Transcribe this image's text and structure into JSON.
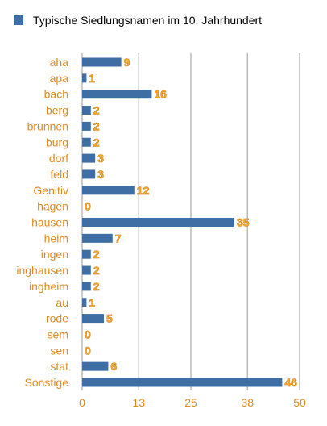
{
  "chart_data": {
    "type": "bar",
    "orientation": "horizontal",
    "categories": [
      "aha",
      "apa",
      "bach",
      "berg",
      "brunnen",
      "burg",
      "dorf",
      "feld",
      "Genitiv",
      "hagen",
      "hausen",
      "heim",
      "ingen",
      "inghausen",
      "ingheim",
      "au",
      "rode",
      "sem",
      "sen",
      "stat",
      "Sonstige"
    ],
    "series": [
      {
        "name": "Typische Siedlungsnamen im 10. Jahrhundert",
        "values": [
          9,
          1,
          16,
          2,
          2,
          2,
          3,
          3,
          12,
          0,
          35,
          7,
          2,
          2,
          2,
          1,
          5,
          0,
          0,
          6,
          46
        ]
      }
    ],
    "xticks": [
      0,
      13,
      25,
      38,
      50
    ],
    "xlim": [
      0,
      50
    ],
    "grid": true,
    "legend_position": "top-left"
  },
  "colors": {
    "bar": "#3e6ea3",
    "label": "#e08a1e",
    "value": "#f5a623",
    "grid": "#999999"
  }
}
